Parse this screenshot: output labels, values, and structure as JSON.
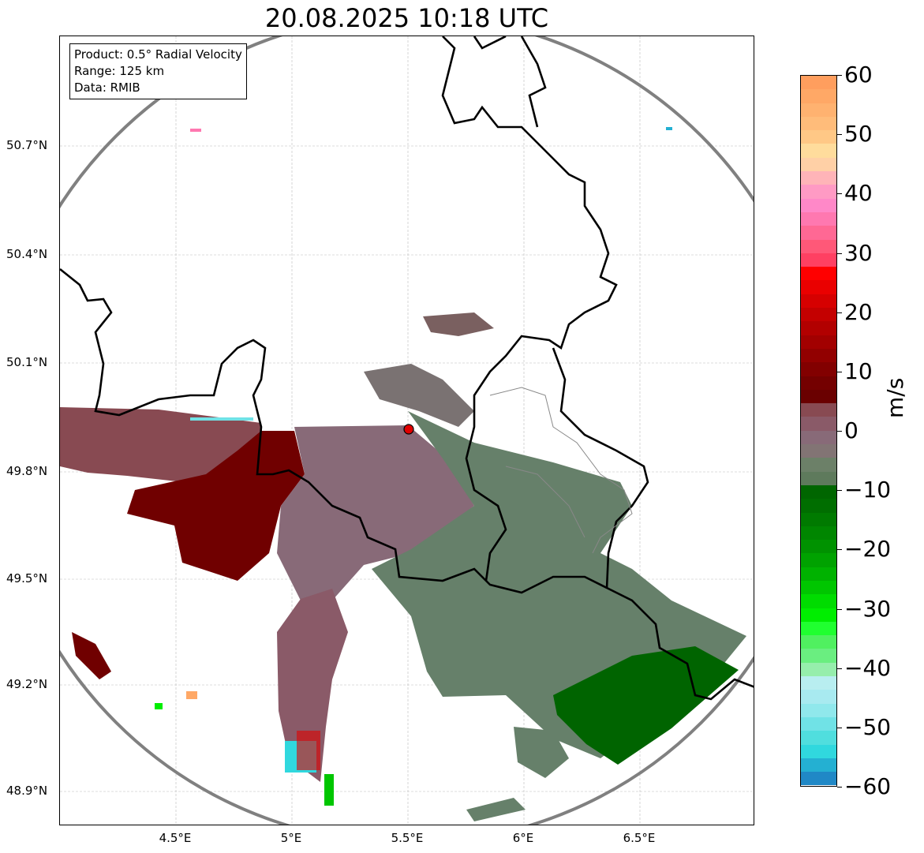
{
  "title": "20.08.2025 10:18 UTC",
  "info": {
    "product": "Product: 0.5° Radial Velocity",
    "range": "Range: 125 km",
    "data": "Data: RMIB"
  },
  "lat_ticks": [
    "50.7°N",
    "50.4°N",
    "50.1°N",
    "49.8°N",
    "49.5°N",
    "49.2°N",
    "48.9°N"
  ],
  "lon_ticks": [
    "4.5°E",
    "5°E",
    "5.5°E",
    "6°E",
    "6.5°E"
  ],
  "colorbar": {
    "label": "m/s",
    "min": -60,
    "max": 60,
    "ticks": [
      "60",
      "50",
      "40",
      "30",
      "20",
      "10",
      "0",
      "−10",
      "−20",
      "−30",
      "−40",
      "−50",
      "−60"
    ],
    "colors": [
      "#ff9e5e",
      "#ffa866",
      "#ffb270",
      "#ffbc7a",
      "#ffc886",
      "#ffdc9c",
      "#ffd0a6",
      "#ffb4b8",
      "#ff9ac4",
      "#ff88c8",
      "#ff78b0",
      "#ff6894",
      "#ff5878",
      "#ff4062",
      "#ff0000",
      "#ea0000",
      "#d60000",
      "#c40000",
      "#b20000",
      "#a20000",
      "#920000",
      "#820000",
      "#740000",
      "#6a0000",
      "#884a52",
      "#8a5a68",
      "#886a78",
      "#827474",
      "#6c8068",
      "#5e7a5c",
      "#006600",
      "#006e00",
      "#007a00",
      "#008600",
      "#009200",
      "#00a200",
      "#00b200",
      "#00c600",
      "#00dc00",
      "#00ee00",
      "#20ff30",
      "#50f060",
      "#6aee80",
      "#96eeac",
      "#b8eef0",
      "#a8eaf0",
      "#90e8ec",
      "#70e2e6",
      "#50dede",
      "#30d8de",
      "#24b0d2",
      "#2088c6"
    ]
  },
  "radar_site": {
    "lon": 5.505,
    "lat": 49.914
  }
}
